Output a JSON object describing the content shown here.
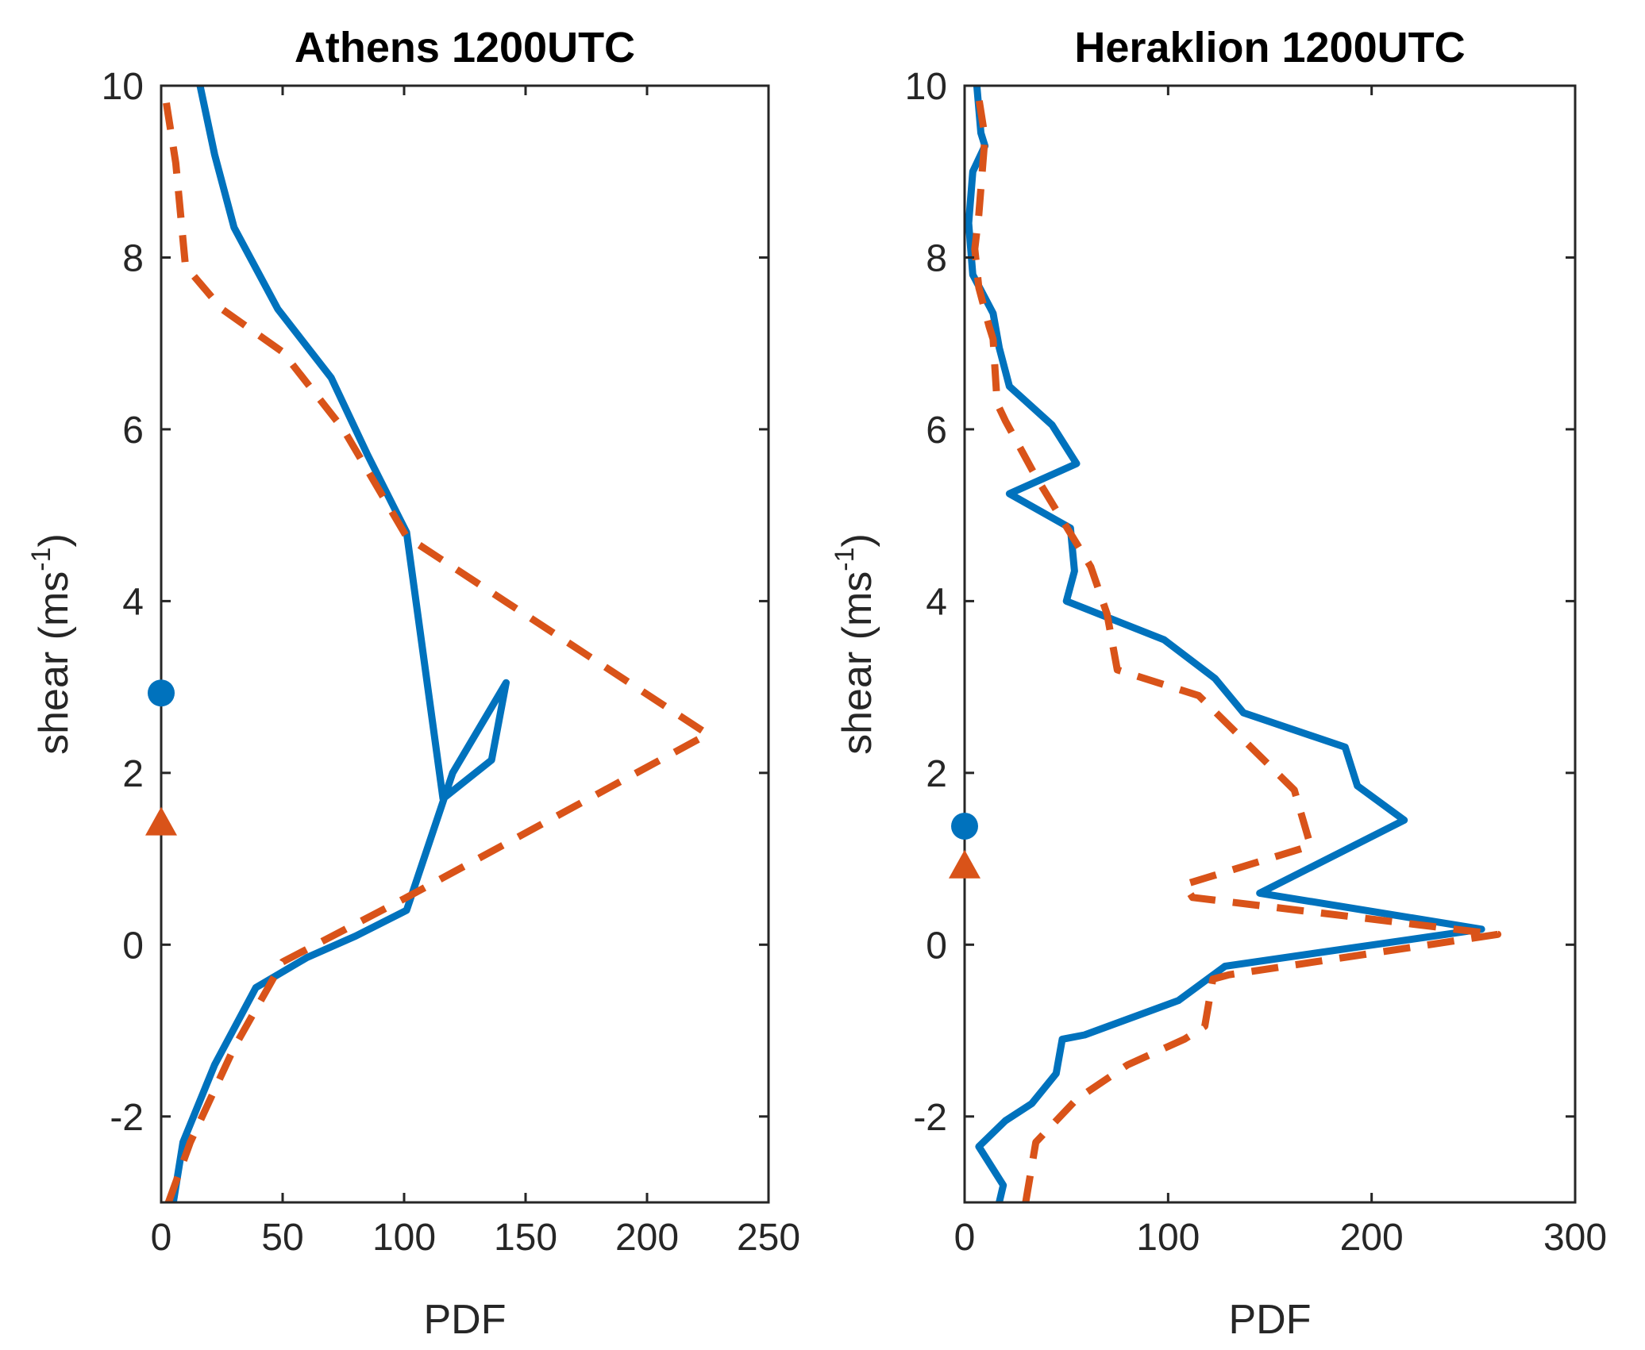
{
  "chart_data": [
    {
      "type": "line",
      "title": "Athens 1200UTC",
      "xlabel": "PDF",
      "ylabel": "shear (ms",
      "ylabel_sup": "-1",
      "ylabel_close": ")",
      "xlim": [
        0,
        250
      ],
      "ylim": [
        -3,
        10
      ],
      "xticks": [
        0,
        50,
        100,
        150,
        200,
        250
      ],
      "xtick_labels": [
        "0",
        "50",
        "100",
        "150",
        "200",
        "250"
      ],
      "yticks": [
        -2,
        0,
        2,
        4,
        6,
        8,
        10
      ],
      "ytick_labels": [
        "-2",
        "0",
        "2",
        "4",
        "6",
        "8",
        "10"
      ],
      "series": [
        {
          "name": "solid-blue",
          "color": "#0072BD",
          "style": "solid",
          "x": [
            5,
            9,
            22,
            39,
            60,
            80,
            101,
            120,
            142,
            136,
            116,
            101,
            85,
            70,
            48,
            30,
            22,
            16
          ],
          "y": [
            -3,
            -2.3,
            -1.4,
            -0.5,
            -0.15,
            0.1,
            0.4,
            2,
            3.05,
            2.15,
            1.7,
            4.8,
            5.7,
            6.6,
            7.4,
            8.35,
            9.2,
            10
          ]
        },
        {
          "name": "dashed-orange",
          "color": "#D95319",
          "style": "dashed",
          "x": [
            3,
            12,
            30,
            50,
            101,
            225,
            101,
            75,
            50,
            25,
            10,
            6,
            1
          ],
          "y": [
            -3,
            -2.3,
            -1.2,
            -0.2,
            0.55,
            2.45,
            4.75,
            6.0,
            6.9,
            7.4,
            7.9,
            9.1,
            10
          ]
        }
      ],
      "markers": [
        {
          "name": "circle-marker",
          "shape": "circle",
          "color": "#0072BD",
          "x": 0,
          "y": 2.93
        },
        {
          "name": "triangle-marker",
          "shape": "triangle",
          "color": "#D95319",
          "x": 0,
          "y": 1.42
        }
      ]
    },
    {
      "type": "line",
      "title": "Heraklion 1200UTC",
      "xlabel": "PDF",
      "ylabel": "shear (ms",
      "ylabel_sup": "-1",
      "ylabel_close": ")",
      "xlim": [
        0,
        300
      ],
      "ylim": [
        -3,
        10
      ],
      "xticks": [
        0,
        100,
        200,
        300
      ],
      "xtick_labels": [
        "0",
        "100",
        "200",
        "300"
      ],
      "yticks": [
        -2,
        0,
        2,
        4,
        6,
        8,
        10
      ],
      "ytick_labels": [
        "-2",
        "0",
        "2",
        "4",
        "6",
        "8",
        "10"
      ],
      "series": [
        {
          "name": "solid-blue",
          "color": "#0072BD",
          "style": "solid",
          "x": [
            17,
            19,
            7,
            20,
            33,
            45,
            48,
            59,
            105,
            128,
            254,
            145,
            216,
            193,
            187,
            137,
            123,
            98,
            50,
            54,
            52,
            22,
            55,
            43,
            22,
            17,
            14,
            4,
            2,
            4,
            10,
            8,
            6
          ],
          "y": [
            -3,
            -2.8,
            -2.35,
            -2.05,
            -1.85,
            -1.5,
            -1.1,
            -1.05,
            -0.65,
            -0.25,
            0.18,
            0.6,
            1.45,
            1.85,
            2.3,
            2.7,
            3.1,
            3.55,
            4.0,
            4.35,
            4.85,
            5.25,
            5.6,
            6.05,
            6.5,
            6.95,
            7.35,
            7.8,
            8.4,
            9.0,
            9.3,
            9.45,
            10
          ]
        },
        {
          "name": "dashed-orange",
          "color": "#D95319",
          "style": "dashed",
          "x": [
            30,
            35,
            55,
            80,
            108,
            118,
            122,
            130,
            262,
            112,
            108,
            170,
            162,
            115,
            75,
            70,
            62,
            35,
            20,
            16,
            14,
            12,
            7,
            5,
            7,
            10,
            6
          ],
          "y": [
            -3,
            -2.3,
            -1.8,
            -1.4,
            -1.1,
            -0.95,
            -0.4,
            -0.35,
            0.12,
            0.55,
            0.7,
            1.15,
            1.8,
            2.9,
            3.2,
            3.85,
            4.4,
            5.45,
            6.1,
            6.3,
            7.05,
            7.2,
            7.65,
            8.1,
            8.5,
            9.4,
            10
          ]
        }
      ],
      "markers": [
        {
          "name": "circle-marker",
          "shape": "circle",
          "color": "#0072BD",
          "x": 0,
          "y": 1.38
        },
        {
          "name": "triangle-marker",
          "shape": "triangle",
          "color": "#D95319",
          "x": 0,
          "y": 0.92
        }
      ]
    }
  ]
}
